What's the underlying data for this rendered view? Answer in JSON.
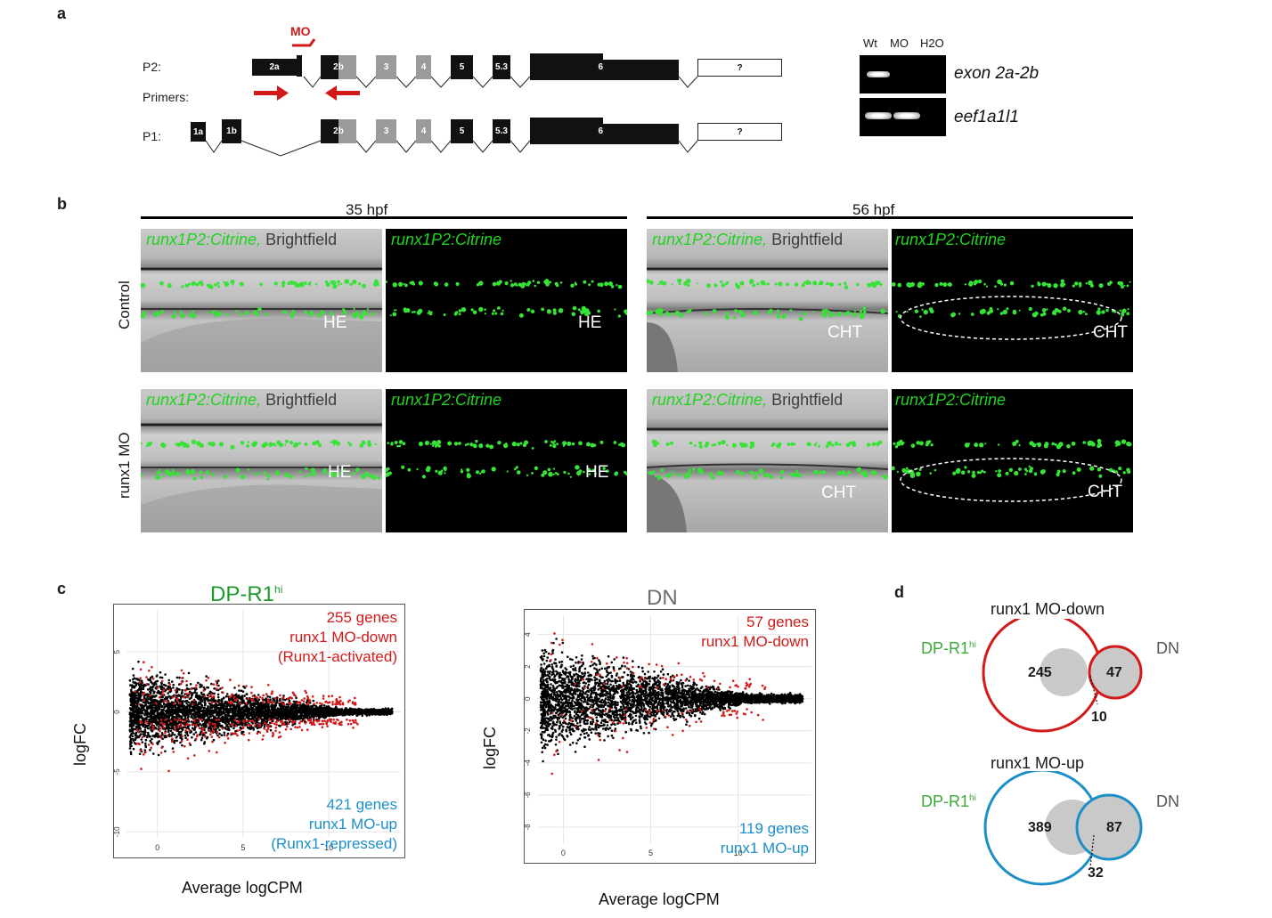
{
  "panels": {
    "a": "a",
    "b": "b",
    "c": "c",
    "d": "d"
  },
  "panel_a": {
    "mo_label": "MO",
    "row_labels": {
      "p2": "P2:",
      "primers": "Primers:",
      "p1": "P1:"
    },
    "p2_exons": [
      "2a",
      "2b",
      "3",
      "4",
      "5",
      "5.3",
      "6",
      "?"
    ],
    "p1_exons": [
      "1a",
      "1b",
      "2b",
      "3",
      "4",
      "5",
      "5.3",
      "6",
      "?"
    ],
    "gel": {
      "lanes": [
        "Wt",
        "MO",
        "H2O"
      ],
      "rows": [
        {
          "gene": "exon 2a-2b",
          "bands": [
            true,
            false,
            false
          ]
        },
        {
          "gene": "eef1a1l1",
          "bands": [
            true,
            true,
            false
          ]
        }
      ]
    }
  },
  "panel_b": {
    "timepoints": [
      "35 hpf",
      "56 hpf"
    ],
    "conditions": [
      "Control",
      "runx1 MO"
    ],
    "label_green": "runx1P2:Citrine,",
    "label_bf": " Brightfield",
    "label_citrine": "runx1P2:Citrine",
    "regions": {
      "he": "HE",
      "cht": "CHT"
    }
  },
  "panel_c": {
    "xlabel": "Average logCPM",
    "ylabel": "logFC",
    "plots": [
      {
        "title": "DP-R1",
        "title_sup": "hi",
        "title_color": "#1e9a2c",
        "down": [
          "255 genes",
          "runx1 MO-down",
          "(Runx1-activated)"
        ],
        "up": [
          "421 genes",
          "runx1 MO-up",
          "(Runx1-repressed)"
        ],
        "yticks": [
          "5",
          "0",
          "-5",
          "-10"
        ],
        "xticks": [
          "0",
          "5",
          "10"
        ]
      },
      {
        "title": "DN",
        "title_sup": "",
        "title_color": "#6d6d6d",
        "down": [
          "57 genes",
          "runx1 MO-down"
        ],
        "up": [
          "119 genes",
          "runx1 MO-up"
        ],
        "yticks": [
          "4",
          "2",
          "0",
          "-2",
          "-4",
          "-6",
          "-8"
        ],
        "xticks": [
          "0",
          "5",
          "10"
        ]
      }
    ],
    "colors": {
      "down": "#d21a1a",
      "up": "#1d8fc7",
      "other": "#000000"
    }
  },
  "panel_d": {
    "venns": [
      {
        "title": "runx1 MO-down",
        "left": "DP-R1",
        "left_sup": "hi",
        "right": "DN",
        "left_only": "245",
        "right_only": "47",
        "overlap": "10",
        "color": "#d21a1a"
      },
      {
        "title": "runx1 MO-up",
        "left": "DP-R1",
        "left_sup": "hi",
        "right": "DN",
        "left_only": "389",
        "right_only": "87",
        "overlap": "32",
        "color": "#1d8fc7"
      }
    ]
  }
}
